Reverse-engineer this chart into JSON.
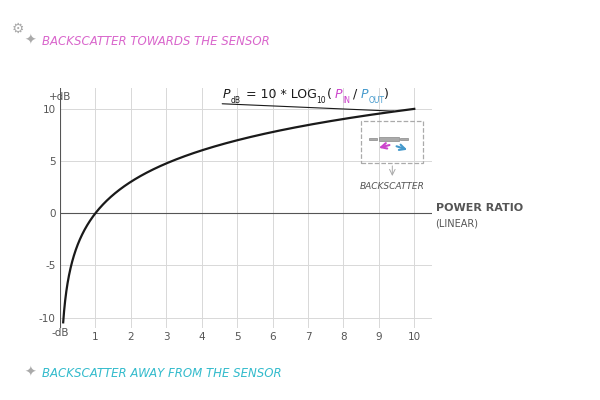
{
  "bg_color": "#ffffff",
  "curve_color": "#1a1a1a",
  "grid_color": "#d8d8d8",
  "axis_color": "#555555",
  "xlabel_line1": "POWER RATIO",
  "xlabel_line2": "(LINEAR)",
  "ylabel_top": "+dB",
  "ylabel_bottom": "-dB",
  "xlim": [
    0,
    10.5
  ],
  "ylim": [
    -11,
    12
  ],
  "xticks": [
    1,
    2,
    3,
    4,
    5,
    6,
    7,
    8,
    9,
    10
  ],
  "yticks": [
    -10,
    -5,
    0,
    5,
    10
  ],
  "backscatter_label": "BACKSCATTER",
  "towards_label": "BACKSCATTER TOWARDS THE SENSOR",
  "away_label": "BACKSCATTER AWAY FROM THE SENSOR",
  "towards_color": "#d966cc",
  "away_color": "#33bbcc",
  "dashed_box_color": "#aaaaaa",
  "equation_color": "#1a1a1a",
  "pin_color": "#cc44cc",
  "pout_color": "#4499cc",
  "arrow_color": "#888888"
}
